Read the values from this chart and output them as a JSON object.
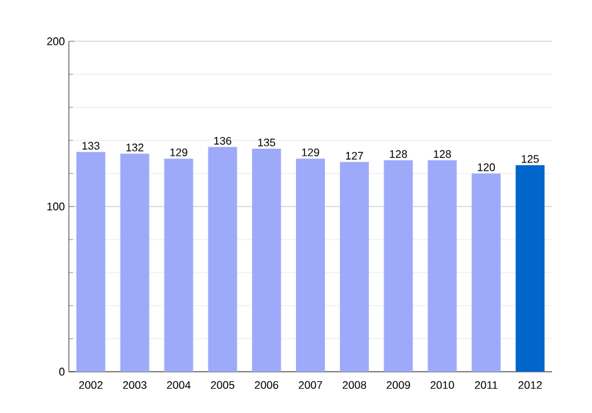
{
  "chart_data": {
    "type": "bar",
    "categories": [
      "2002",
      "2003",
      "2004",
      "2005",
      "2006",
      "2007",
      "2008",
      "2009",
      "2010",
      "2011",
      "2012"
    ],
    "values": [
      133,
      132,
      129,
      136,
      135,
      129,
      127,
      128,
      128,
      120,
      125
    ],
    "colors": [
      "#9daafa",
      "#9daafa",
      "#9daafa",
      "#9daafa",
      "#9daafa",
      "#9daafa",
      "#9daafa",
      "#9daafa",
      "#9daafa",
      "#9daafa",
      "#0066cc"
    ],
    "ylim": [
      0,
      200
    ],
    "yticks": [
      0,
      100,
      200
    ],
    "grid": true,
    "data_labels": true
  }
}
